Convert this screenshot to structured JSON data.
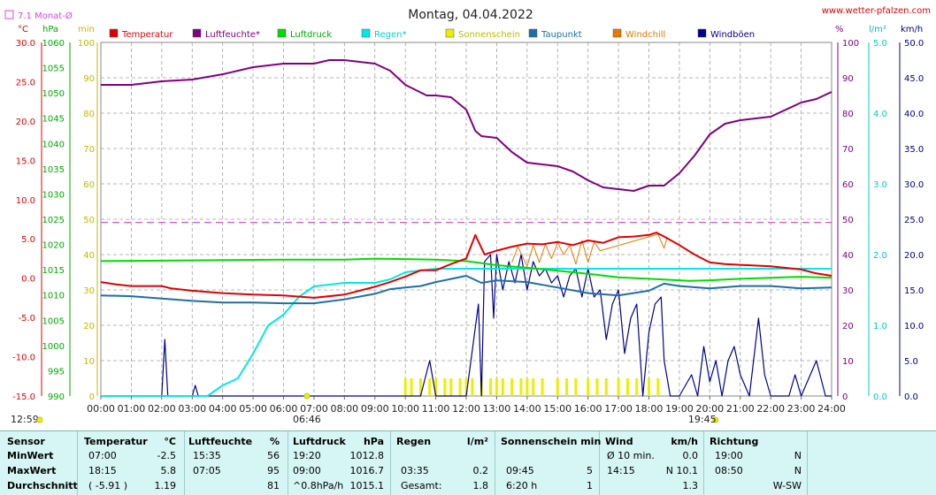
{
  "title": "Montag, 04.04.2022",
  "website": "www.wetter-pfalzen.com",
  "monthly_avg_label": "7.1 Monat-Ø",
  "colors": {
    "temperature": "#e00000",
    "humidity": "#800080",
    "pressure": "#00dd00",
    "rain": "#00e8e8",
    "sunshine": "#eeee00",
    "dewpoint": "#1e6fa8",
    "windchill": "#e87800",
    "gusts": "#000090",
    "avg_line": "#dd44dd",
    "grid": "#a0a0a0"
  },
  "axes": {
    "temp_unit": "°C",
    "pressure_unit": "hPa",
    "min_unit": "min",
    "percent_unit": "%",
    "rain_unit": "l/m²",
    "wind_unit": "km/h",
    "temp_ticks": [
      "30.0",
      "25.0",
      "20.0",
      "15.0",
      "10.0",
      "5.0",
      "0.0",
      "-5.0",
      "-10.0",
      "-15.0"
    ],
    "pressure_ticks": [
      "1060",
      "1055",
      "1050",
      "1045",
      "1040",
      "1035",
      "1030",
      "1025",
      "1020",
      "1015",
      "1010",
      "1005",
      "1000",
      "995",
      "990"
    ],
    "min_ticks": [
      "100",
      "90",
      "80",
      "70",
      "60",
      "50",
      "40",
      "30",
      "20",
      "10",
      "0"
    ],
    "percent_ticks": [
      "100",
      "90",
      "80",
      "70",
      "60",
      "50",
      "40",
      "30",
      "20",
      "10",
      "0"
    ],
    "rain_ticks": [
      "5.0",
      "4.0",
      "3.0",
      "2.0",
      "1.0",
      "0.0"
    ],
    "wind_ticks": [
      "50.0",
      "45.0",
      "40.0",
      "35.0",
      "30.0",
      "25.0",
      "20.0",
      "15.0",
      "10.0",
      "5.0",
      "0.0"
    ],
    "time_ticks": [
      "00:00",
      "01:00",
      "02:00",
      "03:00",
      "04:00",
      "05:00",
      "06:00",
      "07:00",
      "08:00",
      "09:00",
      "10:00",
      "11:00",
      "12:00",
      "13:00",
      "14:00",
      "15:00",
      "16:00",
      "17:00",
      "18:00",
      "19:00",
      "20:00",
      "21:00",
      "22:00",
      "23:00",
      "24:00"
    ],
    "sunrise": "06:46",
    "sunset": "19:45",
    "day_length": "12:59"
  },
  "legend": [
    "Temperatur",
    "Luftfeuchte*",
    "Luftdruck",
    "Regen*",
    "Sonnenschein",
    "Taupunkt",
    "Windchill",
    "Windböen"
  ],
  "chart_data": {
    "type": "line",
    "x_unit": "hours",
    "xlim": [
      0,
      24
    ],
    "temp_lim": [
      -15,
      30
    ],
    "humidity_lim": [
      0,
      100
    ],
    "pressure_lim": [
      990,
      1060
    ],
    "rain_lim": [
      0,
      5
    ],
    "wind_lim": [
      0,
      50
    ],
    "monthly_avg_temp": 7.1,
    "series": [
      {
        "name": "Temperatur",
        "axis": "temp",
        "points": [
          [
            0,
            -0.5
          ],
          [
            0.5,
            -0.8
          ],
          [
            1,
            -1.0
          ],
          [
            2,
            -1.0
          ],
          [
            2.3,
            -1.3
          ],
          [
            3,
            -1.6
          ],
          [
            4,
            -1.9
          ],
          [
            5,
            -2.1
          ],
          [
            6,
            -2.2
          ],
          [
            7,
            -2.5
          ],
          [
            8,
            -2.1
          ],
          [
            9,
            -1.1
          ],
          [
            9.5,
            -0.5
          ],
          [
            10,
            0.2
          ],
          [
            10.5,
            1.0
          ],
          [
            11,
            1.0
          ],
          [
            11.5,
            1.8
          ],
          [
            12,
            2.5
          ],
          [
            12.3,
            5.5
          ],
          [
            12.6,
            3.0
          ],
          [
            13,
            3.5
          ],
          [
            13.5,
            4.0
          ],
          [
            14,
            4.4
          ],
          [
            14.5,
            4.3
          ],
          [
            15,
            4.6
          ],
          [
            15.5,
            4.2
          ],
          [
            16,
            4.8
          ],
          [
            16.5,
            4.5
          ],
          [
            17,
            5.2
          ],
          [
            17.5,
            5.3
          ],
          [
            18,
            5.5
          ],
          [
            18.25,
            5.8
          ],
          [
            18.5,
            5.3
          ],
          [
            19,
            4.2
          ],
          [
            19.5,
            3.0
          ],
          [
            20,
            2.0
          ],
          [
            20.5,
            1.8
          ],
          [
            21,
            1.7
          ],
          [
            22,
            1.5
          ],
          [
            23,
            1.1
          ],
          [
            23.5,
            0.6
          ],
          [
            24,
            0.3
          ]
        ]
      },
      {
        "name": "Luftfeuchte*",
        "axis": "humidity",
        "points": [
          [
            0,
            88
          ],
          [
            1,
            88
          ],
          [
            2,
            89
          ],
          [
            3,
            89.5
          ],
          [
            4,
            91
          ],
          [
            5,
            93
          ],
          [
            6,
            94
          ],
          [
            7,
            94
          ],
          [
            7.5,
            95
          ],
          [
            8,
            95
          ],
          [
            9,
            94
          ],
          [
            9.5,
            92
          ],
          [
            10,
            88
          ],
          [
            10.7,
            85
          ],
          [
            11,
            85
          ],
          [
            11.5,
            84.5
          ],
          [
            12,
            81
          ],
          [
            12.3,
            75
          ],
          [
            12.5,
            73.5
          ],
          [
            13,
            73
          ],
          [
            13.5,
            69
          ],
          [
            14,
            66
          ],
          [
            15,
            65
          ],
          [
            15.5,
            63.5
          ],
          [
            16,
            61
          ],
          [
            16.5,
            59
          ],
          [
            17,
            58.5
          ],
          [
            17.5,
            58
          ],
          [
            18,
            59.5
          ],
          [
            18.5,
            59.5
          ],
          [
            19,
            63
          ],
          [
            19.5,
            68
          ],
          [
            20,
            74
          ],
          [
            20.5,
            77
          ],
          [
            21,
            78
          ],
          [
            22,
            79
          ],
          [
            22.5,
            81
          ],
          [
            23,
            83
          ],
          [
            23.5,
            84
          ],
          [
            24,
            86
          ]
        ]
      },
      {
        "name": "Luftdruck",
        "axis": "pressure",
        "points": [
          [
            0,
            1016.7
          ],
          [
            2,
            1016.8
          ],
          [
            4,
            1016.9
          ],
          [
            6,
            1017.0
          ],
          [
            8,
            1017.0
          ],
          [
            9,
            1017.2
          ],
          [
            10,
            1017.1
          ],
          [
            11,
            1017.0
          ],
          [
            12,
            1016.7
          ],
          [
            13,
            1015.9
          ],
          [
            14,
            1015.4
          ],
          [
            15,
            1014.8
          ],
          [
            16,
            1014.2
          ],
          [
            17,
            1013.5
          ],
          [
            18,
            1013.2
          ],
          [
            19,
            1012.9
          ],
          [
            19.33,
            1012.8
          ],
          [
            20,
            1012.9
          ],
          [
            21,
            1013.2
          ],
          [
            22,
            1013.4
          ],
          [
            23,
            1013.6
          ],
          [
            24,
            1013.4
          ]
        ]
      },
      {
        "name": "Regen*",
        "axis": "rain",
        "points": [
          [
            0,
            0
          ],
          [
            3.5,
            0
          ],
          [
            4,
            0.15
          ],
          [
            4.5,
            0.25
          ],
          [
            5,
            0.6
          ],
          [
            5.5,
            1.0
          ],
          [
            6,
            1.15
          ],
          [
            6.5,
            1.4
          ],
          [
            7,
            1.55
          ],
          [
            8,
            1.6
          ],
          [
            9,
            1.6
          ],
          [
            9.5,
            1.65
          ],
          [
            10,
            1.75
          ],
          [
            11,
            1.8
          ],
          [
            24,
            1.8
          ]
        ]
      },
      {
        "name": "Taupunkt",
        "axis": "temp",
        "points": [
          [
            0,
            -2.2
          ],
          [
            1,
            -2.3
          ],
          [
            2,
            -2.6
          ],
          [
            3,
            -2.9
          ],
          [
            4,
            -3.1
          ],
          [
            5,
            -3.1
          ],
          [
            6,
            -3.2
          ],
          [
            7,
            -3.2
          ],
          [
            8,
            -2.7
          ],
          [
            9,
            -2.0
          ],
          [
            9.5,
            -1.4
          ],
          [
            10,
            -1.2
          ],
          [
            10.5,
            -1.0
          ],
          [
            11,
            -0.5
          ],
          [
            12,
            0.3
          ],
          [
            12.5,
            -0.6
          ],
          [
            13,
            -0.3
          ],
          [
            14,
            -0.5
          ],
          [
            15,
            -1.2
          ],
          [
            16,
            -1.9
          ],
          [
            17,
            -2.2
          ],
          [
            18,
            -1.6
          ],
          [
            18.5,
            -0.7
          ],
          [
            19,
            -1.0
          ],
          [
            20,
            -1.3
          ],
          [
            21,
            -1.0
          ],
          [
            22,
            -1.0
          ],
          [
            23,
            -1.3
          ],
          [
            24,
            -1.2
          ]
        ]
      },
      {
        "name": "Windchill",
        "axis": "temp",
        "points": [
          [
            13.5,
            2.0
          ],
          [
            13.7,
            4.0
          ],
          [
            14,
            1.5
          ],
          [
            14.2,
            4.2
          ],
          [
            14.4,
            2.0
          ],
          [
            14.6,
            4.3
          ],
          [
            14.8,
            2.5
          ],
          [
            15,
            4.5
          ],
          [
            15.2,
            3.0
          ],
          [
            15.4,
            4.2
          ],
          [
            15.6,
            1.8
          ],
          [
            15.8,
            4.8
          ],
          [
            16,
            2.0
          ],
          [
            16.2,
            4.6
          ],
          [
            16.4,
            3.5
          ],
          [
            18.3,
            5.6
          ],
          [
            18.5,
            3.8
          ],
          [
            18.6,
            5.2
          ]
        ]
      },
      {
        "name": "Windböen",
        "axis": "wind",
        "points": [
          [
            0,
            0
          ],
          [
            2,
            0
          ],
          [
            2.1,
            8
          ],
          [
            2.2,
            0
          ],
          [
            3,
            0
          ],
          [
            3.1,
            1.5
          ],
          [
            3.2,
            0
          ],
          [
            10.5,
            0
          ],
          [
            10.8,
            5
          ],
          [
            11,
            0
          ],
          [
            11.5,
            0
          ],
          [
            12,
            0
          ],
          [
            12.4,
            13
          ],
          [
            12.5,
            0
          ],
          [
            12.6,
            19
          ],
          [
            12.8,
            20
          ],
          [
            12.9,
            11
          ],
          [
            13,
            20
          ],
          [
            13.2,
            15
          ],
          [
            13.4,
            19
          ],
          [
            13.6,
            16
          ],
          [
            13.8,
            20
          ],
          [
            14,
            15
          ],
          [
            14.2,
            19
          ],
          [
            14.4,
            17
          ],
          [
            14.6,
            18
          ],
          [
            14.8,
            16
          ],
          [
            15,
            17
          ],
          [
            15.2,
            14
          ],
          [
            15.4,
            17
          ],
          [
            15.6,
            18
          ],
          [
            15.8,
            14
          ],
          [
            16,
            18
          ],
          [
            16.2,
            14
          ],
          [
            16.4,
            15
          ],
          [
            16.6,
            8
          ],
          [
            16.8,
            13
          ],
          [
            17,
            15
          ],
          [
            17.2,
            6
          ],
          [
            17.4,
            11
          ],
          [
            17.6,
            13
          ],
          [
            17.8,
            0
          ],
          [
            18,
            9
          ],
          [
            18.2,
            13
          ],
          [
            18.4,
            14
          ],
          [
            18.5,
            5
          ],
          [
            18.7,
            0
          ],
          [
            19,
            0
          ],
          [
            19.4,
            3
          ],
          [
            19.6,
            0
          ],
          [
            19.8,
            7
          ],
          [
            20,
            2
          ],
          [
            20.2,
            5
          ],
          [
            20.4,
            0
          ],
          [
            20.6,
            5
          ],
          [
            20.8,
            7
          ],
          [
            21,
            3
          ],
          [
            21.3,
            0
          ],
          [
            21.6,
            11
          ],
          [
            21.8,
            3
          ],
          [
            22,
            0
          ],
          [
            22.6,
            0
          ],
          [
            22.8,
            3
          ],
          [
            23,
            0
          ],
          [
            23.5,
            5
          ],
          [
            23.8,
            0
          ],
          [
            24,
            0
          ]
        ]
      }
    ],
    "sunshine_minutes": [
      [
        10.0,
        5
      ],
      [
        10.2,
        5
      ],
      [
        10.5,
        5
      ],
      [
        10.8,
        5
      ],
      [
        11.0,
        5
      ],
      [
        11.3,
        5
      ],
      [
        11.5,
        5
      ],
      [
        11.8,
        5
      ],
      [
        12.0,
        5
      ],
      [
        12.2,
        5
      ],
      [
        12.5,
        5
      ],
      [
        12.8,
        5
      ],
      [
        13.0,
        5
      ],
      [
        13.2,
        5
      ],
      [
        13.5,
        5
      ],
      [
        13.8,
        5
      ],
      [
        14.0,
        5
      ],
      [
        14.2,
        5
      ],
      [
        14.5,
        5
      ],
      [
        15.0,
        5
      ],
      [
        15.3,
        5
      ],
      [
        15.6,
        5
      ],
      [
        16.0,
        5
      ],
      [
        16.3,
        5
      ],
      [
        16.6,
        5
      ],
      [
        17.0,
        5
      ],
      [
        17.3,
        5
      ],
      [
        17.6,
        5
      ],
      [
        18.0,
        5
      ],
      [
        18.3,
        5
      ]
    ]
  },
  "table": {
    "headers": {
      "sensor": "Sensor",
      "temperature": "Temperatur",
      "temp_unit": "°C",
      "humidity": "Luftfeuchte",
      "hum_unit": "%",
      "pressure": "Luftdruck",
      "press_unit": "hPa",
      "rain": "Regen",
      "rain_unit": "l/m²",
      "sun": "Sonnenschein min",
      "wind": "Wind",
      "wind_unit": "km/h",
      "direction": "Richtung"
    },
    "rows": [
      {
        "label": "MinWert",
        "t_time": "07:00",
        "t_val": "-2.5",
        "h_time": "15:35",
        "h_val": "56",
        "p_time": "19:20",
        "p_val": "1012.8",
        "r_time": "",
        "r_val": "",
        "s_time": "",
        "s_val": "",
        "w_time": "Ø 10 min.",
        "w_val": "0.0",
        "d_time": "19:00",
        "d_val": "N"
      },
      {
        "label": "MaxWert",
        "t_time": "18:15",
        "t_val": "5.8",
        "h_time": "07:05",
        "h_val": "95",
        "p_time": "09:00",
        "p_val": "1016.7",
        "r_time": "03:35",
        "r_val": "0.2",
        "s_time": "09:45",
        "s_val": "5",
        "w_time": "14:15",
        "w_val": "N 10.1",
        "d_time": "08:50",
        "d_val": "N"
      },
      {
        "label": "Durchschnitt",
        "t_time": "( -5.91 )",
        "t_val": "1.19",
        "h_time": "",
        "h_val": "81",
        "p_time": "^0.8hPa/h",
        "p_val": "1015.1",
        "r_time": "Gesamt:",
        "r_val": "1.8",
        "s_time": "6:20 h",
        "s_val": "1",
        "w_time": "",
        "w_val": "1.3",
        "d_time": "",
        "d_val": "W-SW"
      }
    ]
  }
}
